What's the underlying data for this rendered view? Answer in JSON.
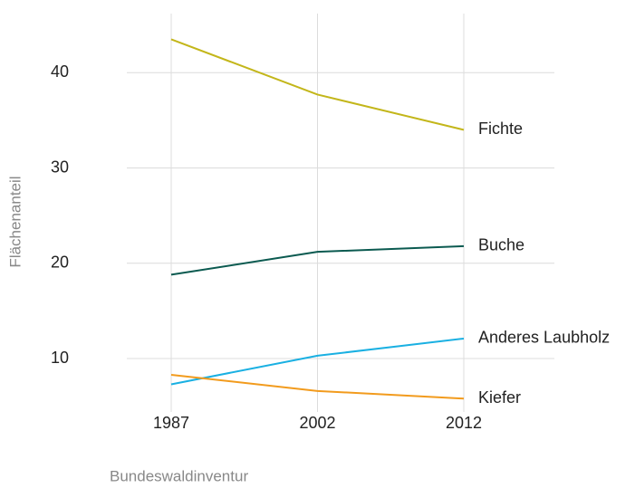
{
  "chart_data": {
    "type": "line",
    "x_label": "Bundeswaldinventur",
    "y_label": "Flächenanteil",
    "categories": [
      "1987",
      "2002",
      "2012"
    ],
    "series": [
      {
        "name": "Fichte",
        "color": "#c3b61a",
        "values": [
          43.5,
          37.7,
          34.0
        ]
      },
      {
        "name": "Buche",
        "color": "#0b5a50",
        "values": [
          18.8,
          21.2,
          21.8
        ]
      },
      {
        "name": "Anderes Laubholz",
        "color": "#1ab0e2",
        "values": [
          7.3,
          10.3,
          12.1
        ]
      },
      {
        "name": "Kiefer",
        "color": "#f29b1d",
        "values": [
          8.3,
          6.6,
          5.8
        ]
      }
    ],
    "ylim": [
      4.4,
      46.2
    ],
    "yticks": [
      10,
      20,
      30,
      40
    ],
    "grid": true
  }
}
